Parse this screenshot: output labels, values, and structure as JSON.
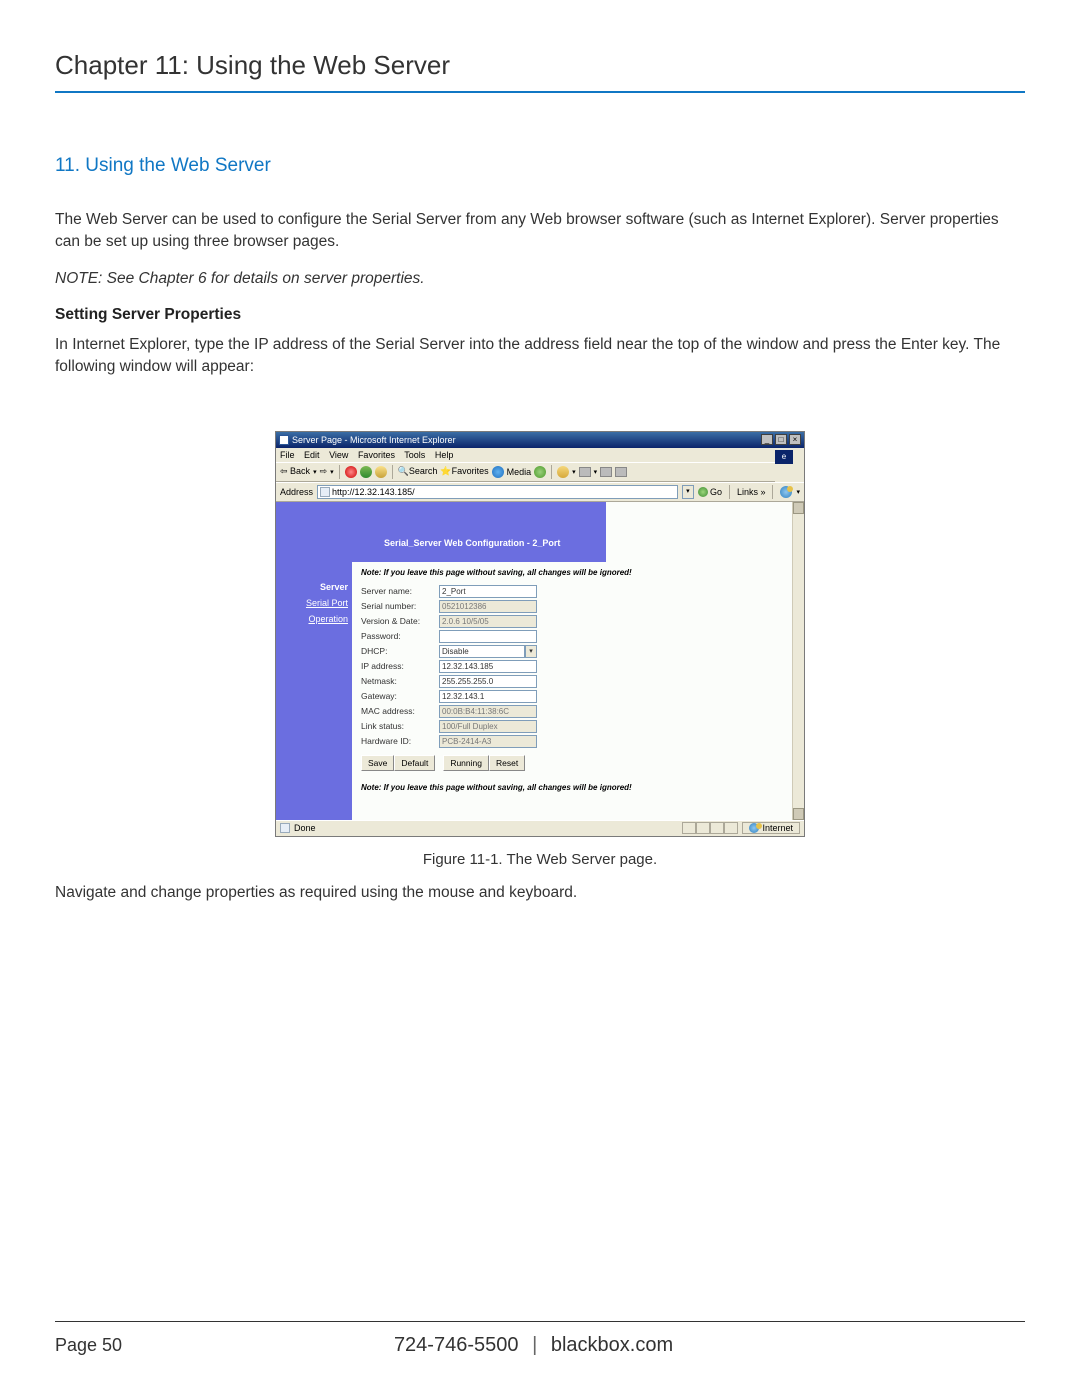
{
  "chapter_title": "Chapter 11: Using the Web Server",
  "section_title": "11. Using the Web Server",
  "para1": "The Web Server can be used to configure the Serial Server from any Web browser software (such as Internet Explorer). Server properties can be set up using three browser pages.",
  "note": "NOTE: See Chapter 6 for details on server properties.",
  "sub_heading": "Setting Server Properties",
  "para2": "In Internet Explorer, type the IP address of the Serial Server into the address field near the top of the window and press the Enter key. The following window will appear:",
  "caption": "Figure 11-1. The Web Server page.",
  "para3": "Navigate and change properties as required using the mouse and keyboard.",
  "footer": {
    "page": "Page 50",
    "phone": "724-746-5500",
    "site": "blackbox.com"
  },
  "ie": {
    "title": "Server Page - Microsoft Internet Explorer",
    "menus": [
      "File",
      "Edit",
      "View",
      "Favorites",
      "Tools",
      "Help"
    ],
    "toolbar": {
      "back": "Back",
      "search": "Search",
      "favorites": "Favorites",
      "media": "Media"
    },
    "address_label": "Address",
    "url": "http://12.32.143.185/",
    "go": "Go",
    "links": "Links",
    "status_done": "Done",
    "status_zone": "Internet"
  },
  "webcfg": {
    "banner": "Serial_Server Web Configuration - 2_Port",
    "warning": "Note: If you leave this page without saving, all changes will be ignored!",
    "nav": {
      "server": "Server",
      "serial": "Serial Port",
      "operation": "Operation"
    },
    "rows": [
      {
        "label": "Server name:",
        "value": "2_Port",
        "readonly": false,
        "type": "text"
      },
      {
        "label": "Serial number:",
        "value": "0521012386",
        "readonly": true,
        "type": "text"
      },
      {
        "label": "Version & Date:",
        "value": "2.0.6 10/5/05",
        "readonly": true,
        "type": "text"
      },
      {
        "label": "Password:",
        "value": "",
        "readonly": false,
        "type": "text"
      },
      {
        "label": "DHCP:",
        "value": "Disable",
        "readonly": false,
        "type": "select"
      },
      {
        "label": "IP address:",
        "value": "12.32.143.185",
        "readonly": false,
        "type": "text"
      },
      {
        "label": "Netmask:",
        "value": "255.255.255.0",
        "readonly": false,
        "type": "text"
      },
      {
        "label": "Gateway:",
        "value": "12.32.143.1",
        "readonly": false,
        "type": "text"
      },
      {
        "label": "MAC address:",
        "value": "00:0B:B4:11:38:6C",
        "readonly": true,
        "type": "text"
      },
      {
        "label": "Link status:",
        "value": "100/Full Duplex",
        "readonly": true,
        "type": "text"
      },
      {
        "label": "Hardware ID:",
        "value": "PCB-2414-A3",
        "readonly": true,
        "type": "text"
      }
    ],
    "buttons": [
      "Save",
      "Default",
      "Running",
      "Reset"
    ]
  },
  "colors": {
    "accent_blue": "#1077c4",
    "ie_banner": "#6b6ee0",
    "ie_chrome": "#ece9d8",
    "ie_content": "#fbfdfa"
  }
}
